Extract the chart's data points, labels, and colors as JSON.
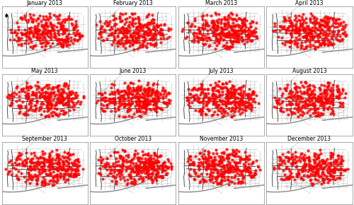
{
  "months": [
    "January 2013",
    "February 2013",
    "March 2013",
    "April 2013",
    "May 2013",
    "June 2013",
    "July 2013",
    "August 2013",
    "September 2013",
    "October 2013",
    "November 2013",
    "December 2013"
  ],
  "nrows": 3,
  "ncols": 4,
  "fig_width": 5.0,
  "fig_height": 2.9,
  "background_color": "#ffffff",
  "street_color_minor": "#999999",
  "street_color_major": "#222222",
  "crime_dot_color": "#ff0000",
  "crime_dot_size": 9.0,
  "crime_dot_alpha": 0.85,
  "river_color": "#888888",
  "title_fontsize": 5.5,
  "border_color": "#888888",
  "num_crimes_per_month": [
    280,
    310,
    330,
    320,
    300,
    340,
    325,
    305,
    315,
    335,
    320,
    290
  ]
}
